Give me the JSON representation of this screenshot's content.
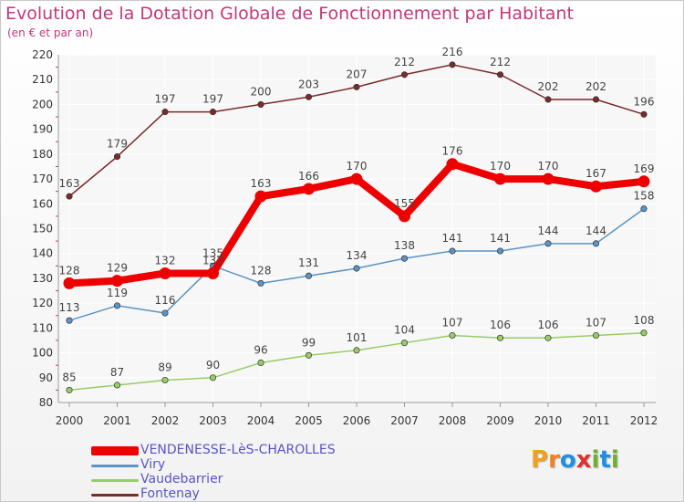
{
  "title": "Evolution de la Dotation Globale de Fonctionnement par Habitant",
  "subtitle": "(en € et par an)",
  "logo": {
    "text": "Proxiti",
    "letters": [
      "P",
      "r",
      "o",
      "x",
      "i",
      "t",
      "i"
    ],
    "colors": [
      "#f0a020",
      "#f08020",
      "#2090e0",
      "#e03030",
      "#70b030",
      "#2090e0",
      "#70b030"
    ]
  },
  "chart_data": {
    "type": "line",
    "categories": [
      "2000",
      "2001",
      "2002",
      "2003",
      "2004",
      "2005",
      "2006",
      "2007",
      "2008",
      "2009",
      "2010",
      "2011",
      "2012"
    ],
    "ylim": [
      80,
      220
    ],
    "yticks": [
      "80",
      "90",
      "100",
      "110",
      "120",
      "130",
      "140",
      "150",
      "160",
      "170",
      "180",
      "190",
      "200",
      "210",
      "220"
    ],
    "grid": true,
    "legend_position": "bottom-left",
    "series": [
      {
        "name": "Fontenay",
        "color": "#7a2a2a",
        "values": [
          163,
          179,
          197,
          197,
          200,
          203,
          207,
          212,
          216,
          212,
          202,
          202,
          196
        ]
      },
      {
        "name": "Vaudebarrier",
        "color": "#99cc66",
        "values": [
          85,
          87,
          89,
          90,
          96,
          99,
          101,
          104,
          107,
          106,
          106,
          107,
          108
        ]
      },
      {
        "name": "Viry",
        "color": "#5b94c5",
        "values": [
          113,
          119,
          116,
          135,
          128,
          131,
          134,
          138,
          141,
          141,
          144,
          144,
          158
        ]
      },
      {
        "name": "VENDENESSE-LèS-CHAROLLES",
        "color": "#ee0000",
        "values": [
          128,
          129,
          132,
          132,
          163,
          166,
          170,
          155,
          176,
          170,
          170,
          167,
          169
        ]
      }
    ],
    "legend_order": [
      "VENDENESSE-LèS-CHAROLLES",
      "Viry",
      "Vaudebarrier",
      "Fontenay"
    ],
    "legend_label_color": "#5555cc"
  }
}
